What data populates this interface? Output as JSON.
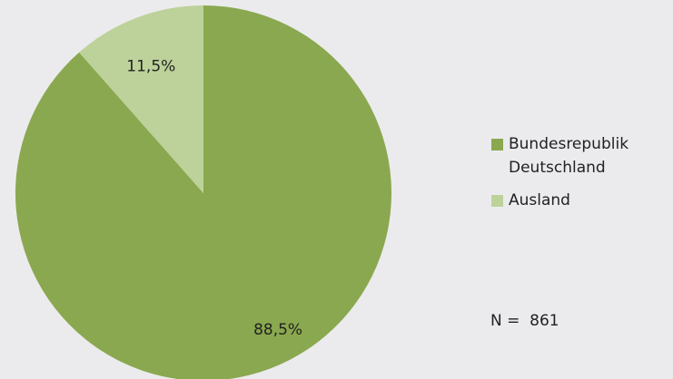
{
  "chart_data": {
    "type": "pie",
    "series": [
      {
        "name": "Bundesrepublik Deutschland",
        "color": "#8aa84f"
      },
      {
        "name": "Ausland",
        "color": "#bdd29a"
      }
    ],
    "values": [
      88.5,
      11.5
    ],
    "value_labels": [
      "88,5%",
      "11,5%"
    ],
    "legend": "right",
    "annotation": "N =  861"
  }
}
